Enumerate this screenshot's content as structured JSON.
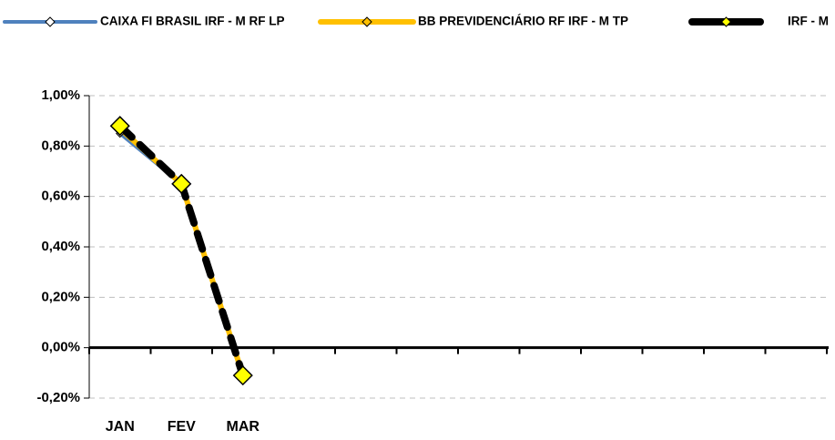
{
  "chart_data": {
    "type": "line",
    "categories": [
      "JAN",
      "FEV",
      "MAR",
      null,
      null,
      null,
      null,
      null,
      null,
      null,
      null,
      null
    ],
    "series": [
      {
        "name": "CAIXA FI BRASIL IRF - M RF LP",
        "color": "#4f81bd",
        "marker_color": "#ffffff",
        "values": [
          0.85,
          0.65,
          -0.11,
          null,
          null,
          null,
          null,
          null,
          null,
          null,
          null,
          null
        ]
      },
      {
        "name": "BB PREVIDENCIÁRIO RF IRF - M TP",
        "color": "#ffc000",
        "marker_color": "#ffc000",
        "values": [
          0.87,
          0.65,
          -0.11,
          null,
          null,
          null,
          null,
          null,
          null,
          null,
          null,
          null
        ]
      },
      {
        "name": "IRF - M",
        "color": "#000000",
        "marker_color": "#ffff00",
        "dashed": true,
        "values": [
          0.88,
          0.65,
          -0.11,
          null,
          null,
          null,
          null,
          null,
          null,
          null,
          null,
          null
        ]
      }
    ],
    "ylim": [
      -0.2,
      1.0
    ],
    "yticks": [
      {
        "value": -0.2,
        "label": "-0,20%"
      },
      {
        "value": 0,
        "label": "0,00%"
      },
      {
        "value": 0.2,
        "label": "0,20%"
      },
      {
        "value": 0.4,
        "label": "0,40%"
      },
      {
        "value": 0.6,
        "label": "0,60%"
      },
      {
        "value": 0.8,
        "label": "0,80%"
      },
      {
        "value": 1.0,
        "label": "1,00%"
      }
    ],
    "grid": true,
    "legend": "top"
  }
}
